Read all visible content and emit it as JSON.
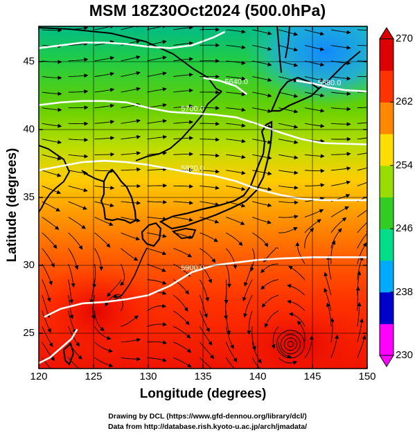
{
  "title": "MSM 18Z30Oct2024 (500.0hPa)",
  "chart_data": {
    "type": "heatmap",
    "title": "MSM 18Z30Oct2024 (500.0hPa)",
    "xlabel": "Longitude (degrees)",
    "ylabel": "Latitude  (degrees)",
    "xlim": [
      120,
      150
    ],
    "ylim": [
      22.4,
      47.6
    ],
    "x_ticks": [
      "120",
      "125",
      "130",
      "135",
      "140",
      "145",
      "150"
    ],
    "y_ticks": [
      "25",
      "30",
      "35",
      "40",
      "45"
    ],
    "colorbar": {
      "min": 230,
      "max": 270,
      "ticks": [
        "270",
        "262",
        "254",
        "246",
        "238",
        "230"
      ],
      "colors": [
        "#ff00ff",
        "#0000cc",
        "#00aaff",
        "#00dd88",
        "#33cc22",
        "#99dd00",
        "#ffdd00",
        "#ff8800",
        "#ff3300",
        "#dd0000"
      ]
    },
    "contours": [
      {
        "label": "5900.0",
        "points": [
          [
            120.5,
            26.2
          ],
          [
            122,
            26.8
          ],
          [
            124,
            27.2
          ],
          [
            126,
            27.3
          ],
          [
            128,
            27.5
          ],
          [
            130,
            27.8
          ],
          [
            132,
            28.5
          ],
          [
            134,
            29.5
          ],
          [
            136,
            30.0
          ],
          [
            138,
            30.2
          ],
          [
            140,
            30.4
          ],
          [
            142,
            30.5
          ],
          [
            145,
            30.6
          ],
          [
            148,
            30.6
          ],
          [
            150,
            30.6
          ]
        ]
      },
      {
        "label": "5820.0",
        "points": [
          [
            120,
            37.0
          ],
          [
            122,
            37.3
          ],
          [
            124,
            37.6
          ],
          [
            126,
            37.7
          ],
          [
            128,
            37.6
          ],
          [
            130,
            37.4
          ],
          [
            132,
            37.1
          ],
          [
            134,
            36.8
          ],
          [
            136,
            36.6
          ],
          [
            138,
            36.2
          ],
          [
            140,
            35.6
          ],
          [
            142,
            35.2
          ],
          [
            144,
            34.9
          ],
          [
            146,
            34.8
          ],
          [
            150,
            34.8
          ]
        ]
      },
      {
        "label": "5700.0",
        "points": [
          [
            120,
            41.8
          ],
          [
            122,
            42.0
          ],
          [
            124,
            42.1
          ],
          [
            126,
            42.1
          ],
          [
            128,
            42.0
          ],
          [
            130,
            41.6
          ],
          [
            132,
            41.3
          ],
          [
            134,
            41.2
          ],
          [
            136,
            41.1
          ],
          [
            138,
            40.9
          ],
          [
            140,
            40.4
          ],
          [
            142,
            39.8
          ],
          [
            144,
            39.3
          ],
          [
            146,
            39.0
          ],
          [
            150,
            38.9
          ]
        ]
      },
      {
        "label": "5640.0",
        "points": [
          [
            135,
            43.8
          ],
          [
            136.5,
            43.6
          ],
          [
            138,
            43.2
          ],
          [
            139,
            42.6
          ]
        ]
      },
      {
        "label": "5580.0",
        "points": [
          [
            143.5,
            43.6
          ],
          [
            145,
            43.4
          ],
          [
            146.5,
            43.1
          ],
          [
            148,
            42.9
          ],
          [
            150,
            42.8
          ]
        ]
      },
      {
        "label": "",
        "points": [
          [
            120,
            46.0
          ],
          [
            122,
            46.2
          ],
          [
            124,
            46.4
          ],
          [
            126,
            46.4
          ],
          [
            128,
            46.3
          ],
          [
            130,
            46.1
          ],
          [
            132,
            46.0
          ],
          [
            134,
            46.2
          ],
          [
            136,
            46.8
          ],
          [
            137,
            47.2
          ]
        ]
      },
      {
        "label": "",
        "points": [
          [
            120,
            22.8
          ],
          [
            121,
            23.2
          ],
          [
            122,
            23.9
          ],
          [
            123,
            24.6
          ],
          [
            123.5,
            25.3
          ]
        ]
      }
    ],
    "low_center": {
      "lon": 143.0,
      "lat": 24.2
    },
    "grid": true
  },
  "xlabel": "Longitude (degrees)",
  "ylabel": "Latitude  (degrees)",
  "credits": {
    "line1": "Drawing by DCL (https://www.gfd-dennou.org/library/dcl/)",
    "line2": "Data from http://database.rish.kyoto-u.ac.jp/arch/jmadata/"
  }
}
